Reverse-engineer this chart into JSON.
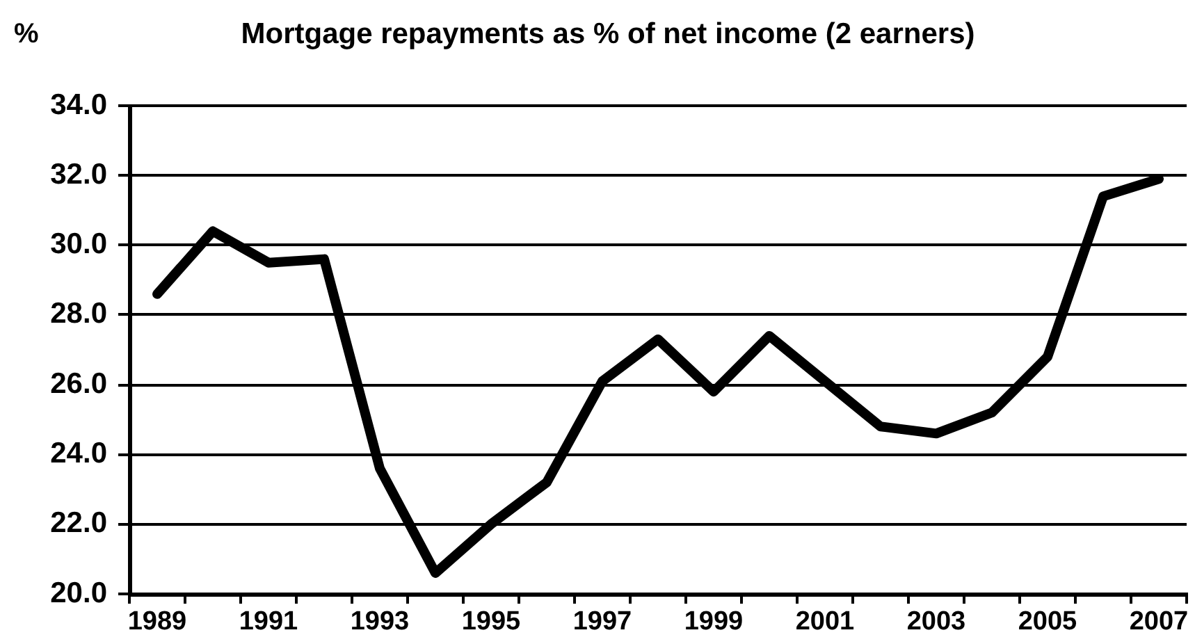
{
  "chart_data": {
    "type": "line",
    "title": "Mortgage repayments as % of net income (2 earners)",
    "ylabel": "%",
    "categories": [
      "1989",
      null,
      "1991",
      null,
      "1993",
      null,
      "1995",
      null,
      "1997",
      null,
      "1999",
      null,
      "2001",
      null,
      "2003",
      null,
      "2005",
      null,
      "2007"
    ],
    "series": [
      {
        "color": "#000000",
        "values": [
          28.6,
          30.4,
          29.5,
          29.6,
          23.6,
          20.6,
          22.0,
          23.2,
          26.1,
          27.3,
          25.8,
          27.4,
          26.1,
          24.8,
          24.6,
          25.2,
          26.8,
          31.4,
          31.9
        ]
      }
    ],
    "ylim": [
      20,
      34
    ],
    "yticks": [
      {
        "value": 20,
        "label": "20.0"
      },
      {
        "value": 22,
        "label": "22.0"
      },
      {
        "value": 24,
        "label": "24.0"
      },
      {
        "value": 26,
        "label": "26.0"
      },
      {
        "value": 28,
        "label": "28.0"
      },
      {
        "value": 30,
        "label": "30.0"
      },
      {
        "value": 32,
        "label": "32.0"
      },
      {
        "value": 34,
        "label": "34.0"
      }
    ],
    "grid": "y"
  }
}
